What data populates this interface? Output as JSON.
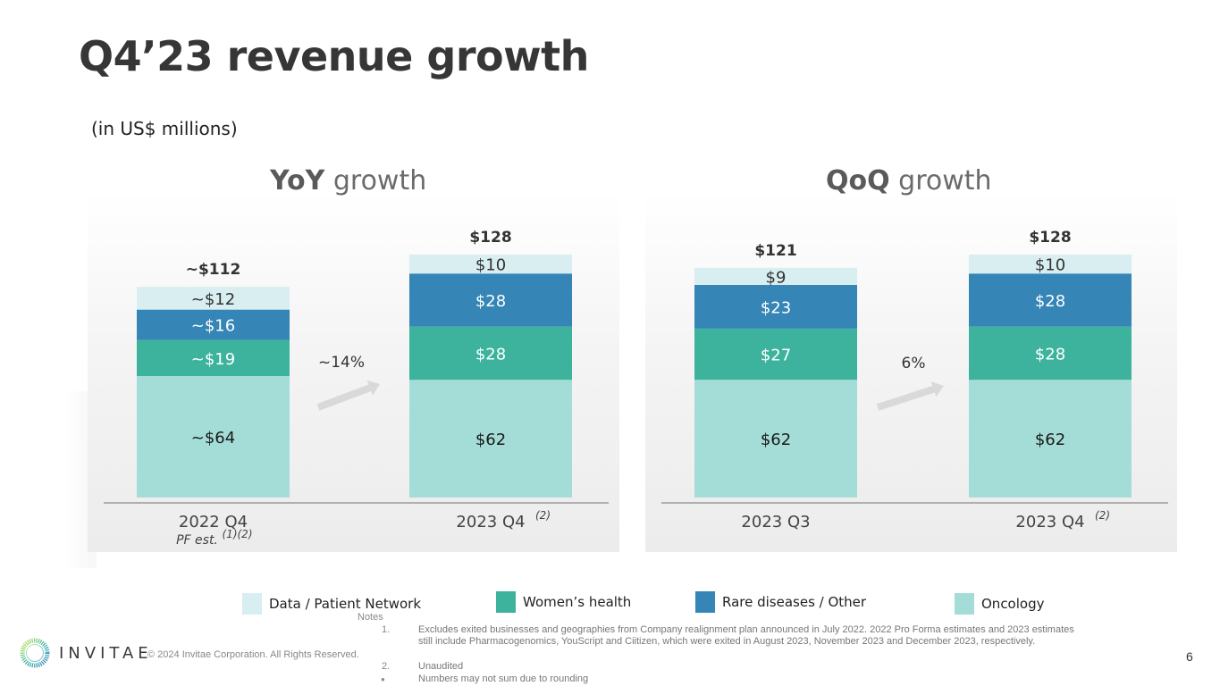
{
  "title": "Q4’23 revenue growth",
  "subtitle": "(in US$ millions)",
  "colors": {
    "data_patient_network": "#d8eef0",
    "womens_health": "#3db39e",
    "rare_diseases_other": "#3585b6",
    "oncology": "#a4ddd7",
    "arrow": "#d9d9d9",
    "axis": "#9a9a9a"
  },
  "chart_data": [
    {
      "type": "bar",
      "stacked": true,
      "title_bold": "YoY",
      "title_rest": " growth",
      "categories": [
        "2022 Q4",
        "2023 Q4"
      ],
      "category_sublabels": [
        "PF est.",
        ""
      ],
      "category_superscripts": [
        "(1)(2)",
        "(2)"
      ],
      "series": [
        {
          "name": "Oncology",
          "values": [
            64,
            62
          ],
          "labels": [
            "~$64",
            "$62"
          ]
        },
        {
          "name": "Women’s health",
          "values": [
            19,
            28
          ],
          "labels": [
            "~$19",
            "$28"
          ]
        },
        {
          "name": "Rare diseases / Other",
          "values": [
            16,
            28
          ],
          "labels": [
            "~$16",
            "$28"
          ]
        },
        {
          "name": "Data / Patient Network",
          "values": [
            12,
            10
          ],
          "labels": [
            "~$12",
            "$10"
          ]
        }
      ],
      "totals": [
        "~$112",
        "$128"
      ],
      "growth_label": "~14%",
      "ylim": [
        0,
        160
      ]
    },
    {
      "type": "bar",
      "stacked": true,
      "title_bold": "QoQ",
      "title_rest": " growth",
      "categories": [
        "2023 Q3",
        "2023 Q4"
      ],
      "category_sublabels": [
        "",
        ""
      ],
      "category_superscripts": [
        "",
        "(2)"
      ],
      "series": [
        {
          "name": "Oncology",
          "values": [
            62,
            62
          ],
          "labels": [
            "$62",
            "$62"
          ]
        },
        {
          "name": "Women’s health",
          "values": [
            27,
            28
          ],
          "labels": [
            "$27",
            "$28"
          ]
        },
        {
          "name": "Rare diseases / Other",
          "values": [
            23,
            28
          ],
          "labels": [
            "$23",
            "$28"
          ]
        },
        {
          "name": "Data / Patient Network",
          "values": [
            9,
            10
          ],
          "labels": [
            "$9",
            "$10"
          ]
        }
      ],
      "totals": [
        "$121",
        "$128"
      ],
      "growth_label": "6%",
      "ylim": [
        0,
        160
      ]
    }
  ],
  "legend": [
    {
      "label": "Data / Patient Network",
      "color": "#d8eef0"
    },
    {
      "label": "Women’s health",
      "color": "#3db39e"
    },
    {
      "label": "Rare diseases / Other",
      "color": "#3585b6"
    },
    {
      "label": "Oncology",
      "color": "#a4ddd7"
    }
  ],
  "notes": {
    "title": "Notes",
    "items": [
      {
        "marker": "1.",
        "text": "Excludes exited businesses and geographies from Company realignment plan announced in July 2022. 2022 Pro Forma estimates and 2023 estimates still include Pharmacogenomics, YouScript and Ciitizen, which were exited in August 2023, November 2023 and December 2023, respectively."
      },
      {
        "marker": "2.",
        "text": "Unaudited"
      },
      {
        "marker": "●",
        "text": "Numbers may not sum due to rounding"
      }
    ]
  },
  "footer": {
    "logo_text": "INVITAE",
    "copyright": "© 2024 Invitae Corporation. All Rights Reserved.",
    "page_number": "6"
  }
}
